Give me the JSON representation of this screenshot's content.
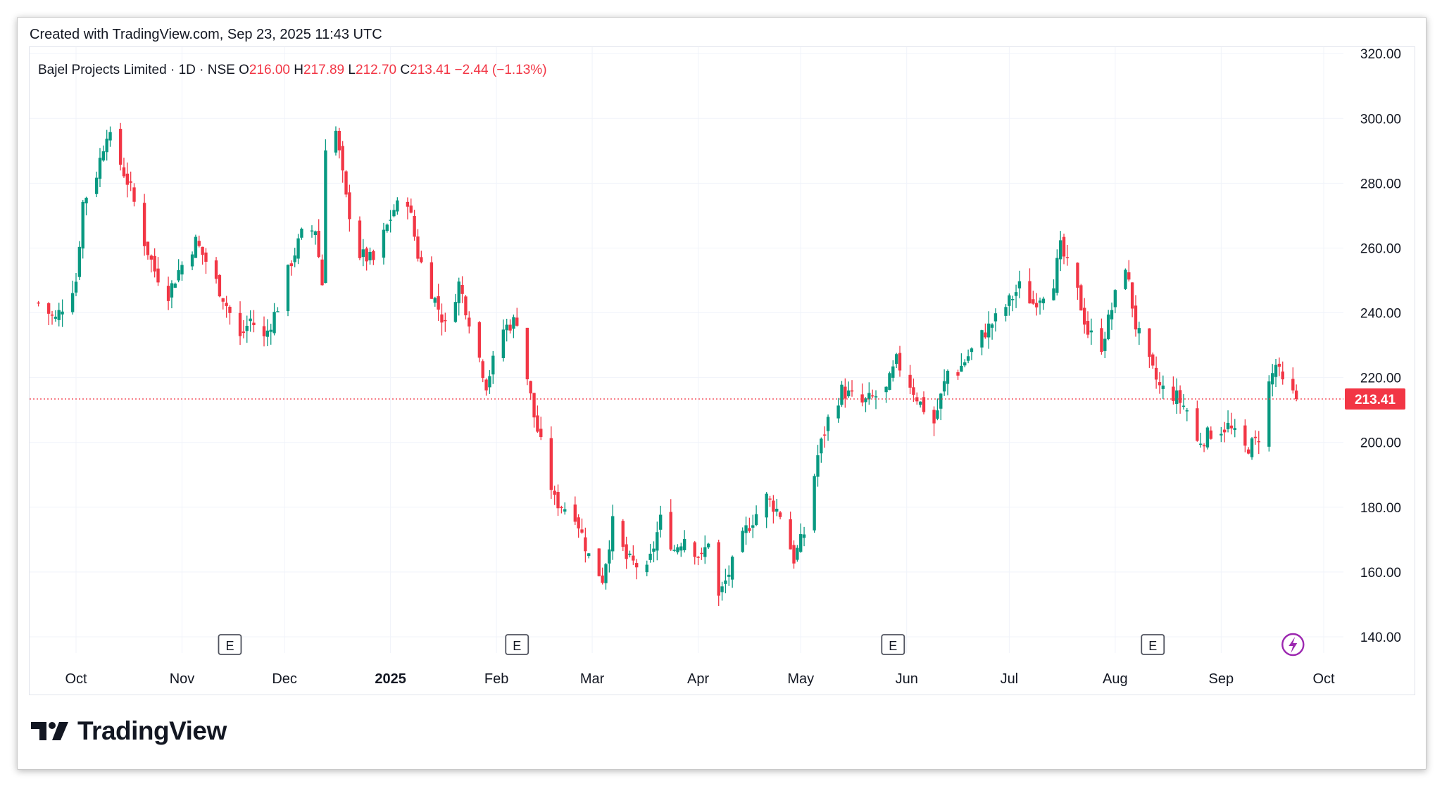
{
  "credit": "Created with TradingView.com, Sep 23, 2025 11:43 UTC",
  "brand": "TradingView",
  "colors": {
    "up": "#089981",
    "down": "#f23645",
    "text": "#131722",
    "grid": "#f0f3fa"
  },
  "earnings_marker": "E",
  "chart_data": {
    "type": "candlestick",
    "symbol": "Bajel Projects Limited",
    "interval": "1D",
    "exchange": "NSE",
    "ohlc_legend": {
      "open": "216.00",
      "high": "217.89",
      "low": "212.70",
      "close": "213.41",
      "change": "−2.44",
      "change_pct": "(−1.13%)"
    },
    "last_price": "213.41",
    "y_ticks": [
      "320.00",
      "300.00",
      "280.00",
      "260.00",
      "240.00",
      "220.00",
      "200.00",
      "180.00",
      "160.00",
      "140.00"
    ],
    "y_range": [
      135,
      322
    ],
    "x_ticks": [
      {
        "label": "Oct",
        "date": "2024-10-01",
        "bold": false
      },
      {
        "label": "Nov",
        "date": "2024-11-01",
        "bold": false
      },
      {
        "label": "Dec",
        "date": "2024-12-01",
        "bold": false
      },
      {
        "label": "2025",
        "date": "2025-01-01",
        "bold": true
      },
      {
        "label": "Feb",
        "date": "2025-02-01",
        "bold": false
      },
      {
        "label": "Mar",
        "date": "2025-03-01",
        "bold": false
      },
      {
        "label": "Apr",
        "date": "2025-04-01",
        "bold": false
      },
      {
        "label": "May",
        "date": "2025-05-01",
        "bold": false
      },
      {
        "label": "Jun",
        "date": "2025-06-01",
        "bold": false
      },
      {
        "label": "Jul",
        "date": "2025-07-01",
        "bold": false
      },
      {
        "label": "Aug",
        "date": "2025-08-01",
        "bold": false
      },
      {
        "label": "Sep",
        "date": "2025-09-01",
        "bold": false
      },
      {
        "label": "Oct",
        "date": "2025-10-01",
        "bold": false
      }
    ],
    "earnings_dates": [
      "2024-11-15",
      "2025-02-07",
      "2025-05-28",
      "2025-08-12"
    ],
    "event_date": "2025-09-22",
    "anchors": [
      [
        "2024-09-20",
        243
      ],
      [
        "2024-09-25",
        238
      ],
      [
        "2024-10-01",
        250
      ],
      [
        "2024-10-03",
        274
      ],
      [
        "2024-10-07",
        283
      ],
      [
        "2024-10-10",
        296
      ],
      [
        "2024-10-14",
        286
      ],
      [
        "2024-10-17",
        278
      ],
      [
        "2024-10-21",
        262
      ],
      [
        "2024-10-24",
        253
      ],
      [
        "2024-10-28",
        246
      ],
      [
        "2024-10-31",
        253
      ],
      [
        "2024-11-05",
        262
      ],
      [
        "2024-11-08",
        256
      ],
      [
        "2024-11-13",
        245
      ],
      [
        "2024-11-18",
        232
      ],
      [
        "2024-11-21",
        238
      ],
      [
        "2024-11-25",
        232
      ],
      [
        "2024-11-29",
        242
      ],
      [
        "2024-12-03",
        256
      ],
      [
        "2024-12-06",
        264
      ],
      [
        "2024-12-10",
        266
      ],
      [
        "2024-12-12",
        249
      ],
      [
        "2024-12-13",
        292
      ],
      [
        "2024-12-16",
        296
      ],
      [
        "2024-12-19",
        275
      ],
      [
        "2024-12-23",
        258
      ],
      [
        "2024-12-27",
        256
      ],
      [
        "2025-01-02",
        272
      ],
      [
        "2025-01-06",
        275
      ],
      [
        "2025-01-09",
        258
      ],
      [
        "2025-01-14",
        244
      ],
      [
        "2025-01-17",
        236
      ],
      [
        "2025-01-21",
        249
      ],
      [
        "2025-01-24",
        238
      ],
      [
        "2025-01-29",
        218
      ],
      [
        "2025-02-03",
        235
      ],
      [
        "2025-02-07",
        238
      ],
      [
        "2025-02-12",
        208
      ],
      [
        "2025-02-18",
        182
      ],
      [
        "2025-02-24",
        178
      ],
      [
        "2025-02-28",
        165
      ],
      [
        "2025-03-04",
        158
      ],
      [
        "2025-03-07",
        175
      ],
      [
        "2025-03-11",
        164
      ],
      [
        "2025-03-17",
        160
      ],
      [
        "2025-03-21",
        176
      ],
      [
        "2025-03-25",
        167
      ],
      [
        "2025-03-28",
        171
      ],
      [
        "2025-04-02",
        164
      ],
      [
        "2025-04-04",
        170
      ],
      [
        "2025-04-07",
        152
      ],
      [
        "2025-04-09",
        157
      ],
      [
        "2025-04-15",
        173
      ],
      [
        "2025-04-21",
        183
      ],
      [
        "2025-04-25",
        178
      ],
      [
        "2025-04-29",
        164
      ],
      [
        "2025-05-02",
        172
      ],
      [
        "2025-05-06",
        196
      ],
      [
        "2025-05-09",
        207
      ],
      [
        "2025-05-13",
        216
      ],
      [
        "2025-05-19",
        212
      ],
      [
        "2025-05-26",
        216
      ],
      [
        "2025-05-29",
        225
      ],
      [
        "2025-06-02",
        218
      ],
      [
        "2025-06-05",
        212
      ],
      [
        "2025-06-09",
        206
      ],
      [
        "2025-06-13",
        222
      ],
      [
        "2025-06-16",
        222
      ],
      [
        "2025-06-23",
        233
      ],
      [
        "2025-06-27",
        238
      ],
      [
        "2025-06-30",
        242
      ],
      [
        "2025-07-04",
        248
      ],
      [
        "2025-07-08",
        243
      ],
      [
        "2025-07-14",
        250
      ],
      [
        "2025-07-16",
        260
      ],
      [
        "2025-07-21",
        246
      ],
      [
        "2025-07-24",
        234
      ],
      [
        "2025-07-28",
        230
      ],
      [
        "2025-08-01",
        245
      ],
      [
        "2025-08-04",
        255
      ],
      [
        "2025-08-07",
        236
      ],
      [
        "2025-08-11",
        224
      ],
      [
        "2025-08-14",
        217
      ],
      [
        "2025-08-19",
        214
      ],
      [
        "2025-08-22",
        210
      ],
      [
        "2025-08-25",
        200
      ],
      [
        "2025-08-29",
        203
      ],
      [
        "2025-09-03",
        205
      ],
      [
        "2025-09-08",
        198
      ],
      [
        "2025-09-11",
        200
      ],
      [
        "2025-09-12",
        202
      ],
      [
        "2025-09-15",
        218
      ],
      [
        "2025-09-17",
        224
      ],
      [
        "2025-09-19",
        218
      ],
      [
        "2025-09-23",
        213.41
      ]
    ]
  }
}
